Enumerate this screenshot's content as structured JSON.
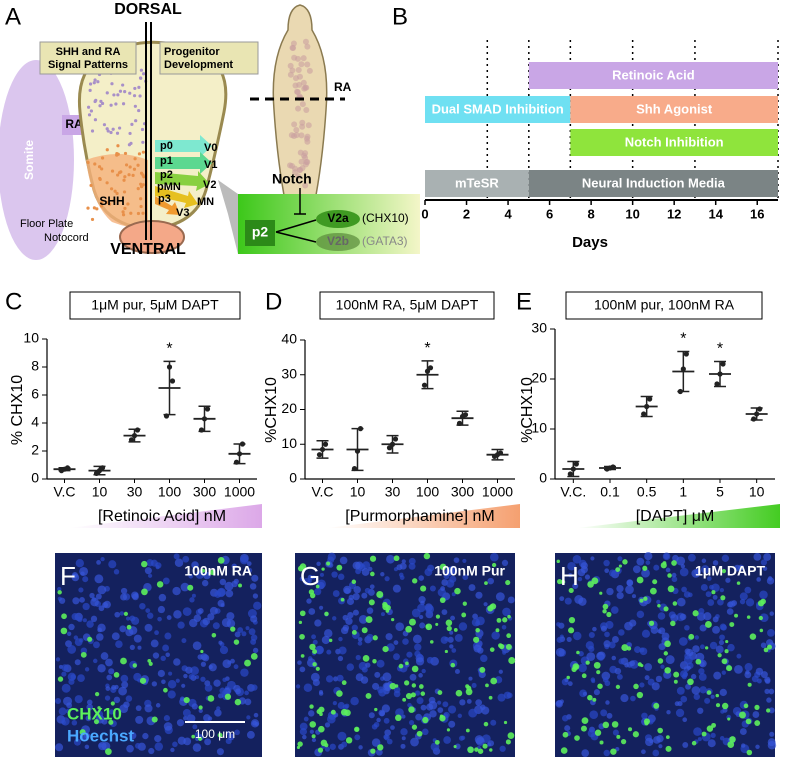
{
  "diagram": {
    "panel": "A",
    "dorsal": "DORSAL",
    "ventral": "VENTRAL",
    "left_box": [
      "SHH and RA",
      "Signal Patterns"
    ],
    "right_box": [
      "Progenitor",
      "Development"
    ],
    "somite": "Somite",
    "ra_arrow": "RA",
    "shh": "SHH",
    "floor_plate": "Floor Plate",
    "notocord": "Notocord",
    "progenitors": [
      "p0",
      "p1",
      "p2",
      "pMN",
      "p3"
    ],
    "neurons": [
      "V0",
      "V1",
      "V2",
      "MN",
      "V3"
    ],
    "embryo_ra": "RA",
    "notch": "Notch",
    "notch_from": "p2",
    "v2a": "V2a",
    "v2a_marker": "(CHX10)",
    "v2b": "V2b",
    "v2b_marker": "(GATA3)"
  },
  "chart_data": [
    {
      "panel": "B",
      "type": "timeline",
      "xlabel": "Days",
      "xlim": [
        0,
        17
      ],
      "xticks": [
        0,
        2,
        4,
        6,
        8,
        10,
        12,
        14,
        16
      ],
      "markers": [
        3,
        5,
        7,
        10,
        13,
        17
      ],
      "rows": [
        [
          {
            "label": "Retinoic Acid",
            "start": 5,
            "end": 17,
            "color": "#c9a6e6"
          }
        ],
        [
          {
            "label": "Dual SMAD Inhibition",
            "start": 0,
            "end": 7,
            "color": "#6fe0f2"
          },
          {
            "label": "Shh Agonist",
            "start": 7,
            "end": 17,
            "color": "#f8ab8a"
          }
        ],
        [
          {
            "label": "Notch Inhibition",
            "start": 7,
            "end": 17,
            "color": "#8fe43c"
          }
        ],
        [
          {
            "label": "mTeSR",
            "start": 0,
            "end": 5,
            "color": "#a9b1b2"
          },
          {
            "label": "Neural Induction Media",
            "start": 5,
            "end": 17,
            "color": "#7b8485"
          }
        ]
      ]
    },
    {
      "panel": "C",
      "type": "dot",
      "title": "1μM pur, 5μM DAPT",
      "ylabel": "% CHX10",
      "xlabel": "[Retinoic Acid] nM",
      "categories": [
        "V.C",
        "10",
        "30",
        "100",
        "300",
        "1000"
      ],
      "values": [
        0.7,
        0.6,
        3.1,
        6.5,
        4.3,
        1.8
      ],
      "sd": [
        0.1,
        0.3,
        0.45,
        1.9,
        0.9,
        0.7
      ],
      "points": [
        [
          0.6,
          0.7,
          0.8
        ],
        [
          0.4,
          0.6,
          0.8
        ],
        [
          2.8,
          3.1,
          3.5
        ],
        [
          4.5,
          8,
          7
        ],
        [
          3.5,
          4.3,
          5
        ],
        [
          1.2,
          1.8,
          2.5
        ]
      ],
      "significance": [
        null,
        null,
        null,
        "*",
        null,
        null
      ],
      "ylim": [
        0,
        10
      ],
      "yticks": [
        0,
        2,
        4,
        6,
        8,
        10
      ],
      "color": "#222222",
      "ramp_color": "#dca8e8"
    },
    {
      "panel": "D",
      "type": "dot",
      "title": "100nM RA, 5μM DAPT",
      "ylabel": "%CHX10",
      "xlabel": "[Purmorphamine] nM",
      "categories": [
        "V.C",
        "10",
        "30",
        "100",
        "300",
        "1000"
      ],
      "values": [
        8.5,
        8.5,
        10,
        30,
        17.5,
        7
      ],
      "sd": [
        2.5,
        6,
        2.5,
        4,
        2,
        1.5
      ],
      "points": [
        [
          7,
          8.5,
          10
        ],
        [
          3,
          8,
          14.5
        ],
        [
          9,
          10,
          11.5
        ],
        [
          27,
          31,
          32
        ],
        [
          16,
          18,
          18.5
        ],
        [
          6.5,
          7,
          7.5
        ]
      ],
      "significance": [
        null,
        null,
        null,
        "*",
        null,
        null
      ],
      "ylim": [
        0,
        40
      ],
      "yticks": [
        0,
        10,
        20,
        30,
        40
      ],
      "color": "#222222",
      "ramp_color": "#f5a070"
    },
    {
      "panel": "E",
      "type": "dot",
      "title": "100nM pur, 100nM RA",
      "ylabel": "%CHX10",
      "xlabel": "[DAPT] μM",
      "categories": [
        "V.C.",
        "0.1",
        "0.5",
        "1",
        "5",
        "10"
      ],
      "values": [
        2,
        2.2,
        14.5,
        21.5,
        21,
        13
      ],
      "sd": [
        1.5,
        0.3,
        2,
        4,
        2.5,
        1.2
      ],
      "points": [
        [
          1,
          2,
          3
        ],
        [
          2,
          2.2,
          2.4
        ],
        [
          13,
          14.5,
          16
        ],
        [
          17.5,
          22,
          25
        ],
        [
          19,
          21,
          23
        ],
        [
          12,
          13,
          14
        ]
      ],
      "significance": [
        null,
        null,
        null,
        "*",
        "*",
        null
      ],
      "ylim": [
        0,
        30
      ],
      "yticks": [
        0,
        10,
        20,
        30
      ],
      "color": "#222222",
      "ramp_color": "#44cc22"
    }
  ],
  "images": [
    {
      "panel": "F",
      "label": "100nM RA",
      "legend": [
        "CHX10",
        "Hoechst"
      ],
      "scale_bar": "100 μm"
    },
    {
      "panel": "G",
      "label": "100nM Pur"
    },
    {
      "panel": "H",
      "label": "1μM DAPT"
    }
  ]
}
